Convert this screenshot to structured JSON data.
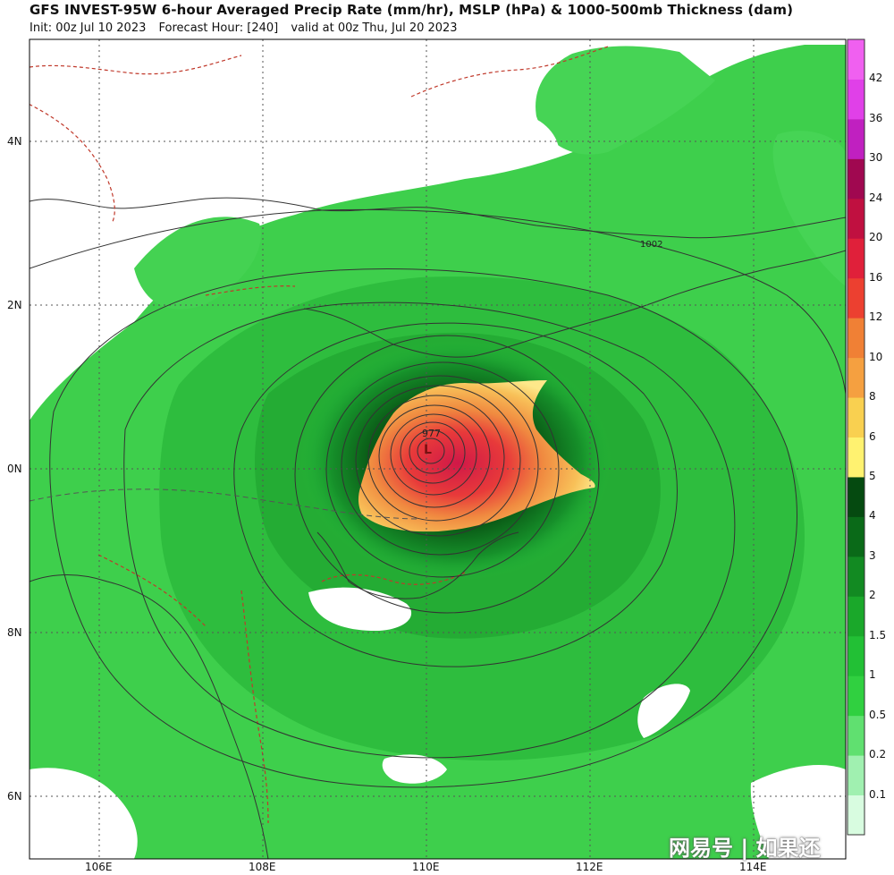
{
  "header": {
    "title": "GFS INVEST-95W 6-hour Averaged Precip Rate (mm/hr), MSLP (hPa) & 1000-500mb Thickness (dam)",
    "init": "Init: 00z Jul 10 2023",
    "forecast_hour": "Forecast Hour: [240]",
    "valid": "valid at 00z Thu, Jul 20 2023"
  },
  "map": {
    "latitudes": [
      "4N",
      "2N",
      "0N",
      "8N",
      "6N"
    ],
    "longitudes": [
      "106E",
      "108E",
      "110E",
      "112E",
      "114E"
    ],
    "isobar_labels": [
      "1002",
      "977"
    ],
    "low_center_label": "977",
    "low_center_symbol": "L"
  },
  "colorbar": {
    "ticks": [
      "0.1",
      "0.2",
      "0.5",
      "1",
      "1.5",
      "2",
      "3",
      "4",
      "5",
      "6",
      "8",
      "10",
      "12",
      "16",
      "20",
      "24",
      "30",
      "36",
      "42"
    ],
    "colors": [
      "#d8fce0",
      "#a0f0b0",
      "#60e070",
      "#30d040",
      "#22c035",
      "#1aa82a",
      "#128a22",
      "#0a6a18",
      "#054a10",
      "#fff270",
      "#f9d050",
      "#f5a040",
      "#f08035",
      "#ec4030",
      "#e0203a",
      "#c01040",
      "#a00850",
      "#c020c0",
      "#e040e8",
      "#f060f0"
    ]
  },
  "watermark": "网易号 | 如果还"
}
